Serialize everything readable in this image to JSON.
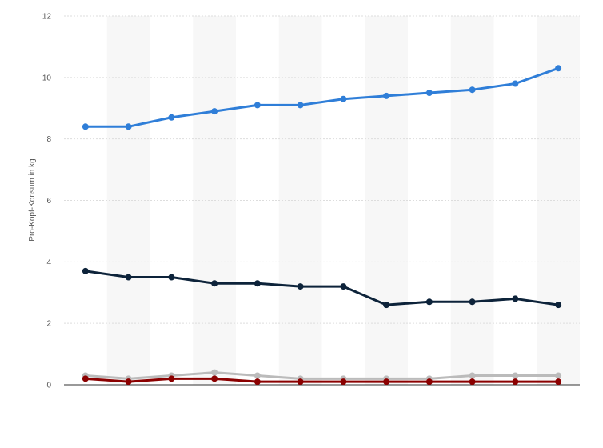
{
  "chart_data": {
    "type": "line",
    "ylabel": "Pro-Kopf-Konsum in kg",
    "ylim": [
      0,
      12
    ],
    "yticks": [
      "0",
      "2",
      "4",
      "6",
      "8",
      "10",
      "12"
    ],
    "grid": true,
    "legend": "none",
    "x_count": 12,
    "series": [
      {
        "color": "#2f7ed8",
        "values": [
          8.4,
          8.4,
          8.7,
          8.9,
          9.1,
          9.1,
          9.3,
          9.4,
          9.5,
          9.6,
          9.8,
          10.3
        ]
      },
      {
        "color": "#0d233a",
        "values": [
          3.7,
          3.5,
          3.5,
          3.3,
          3.3,
          3.2,
          3.2,
          2.6,
          2.7,
          2.7,
          2.8,
          2.6
        ]
      },
      {
        "color": "#bbbbbb",
        "values": [
          0.3,
          0.2,
          0.3,
          0.4,
          0.3,
          0.2,
          0.2,
          0.2,
          0.2,
          0.3,
          0.3,
          0.3
        ]
      },
      {
        "color": "#8b0000",
        "values": [
          0.2,
          0.1,
          0.2,
          0.2,
          0.1,
          0.1,
          0.1,
          0.1,
          0.1,
          0.1,
          0.1,
          0.1
        ]
      }
    ]
  }
}
